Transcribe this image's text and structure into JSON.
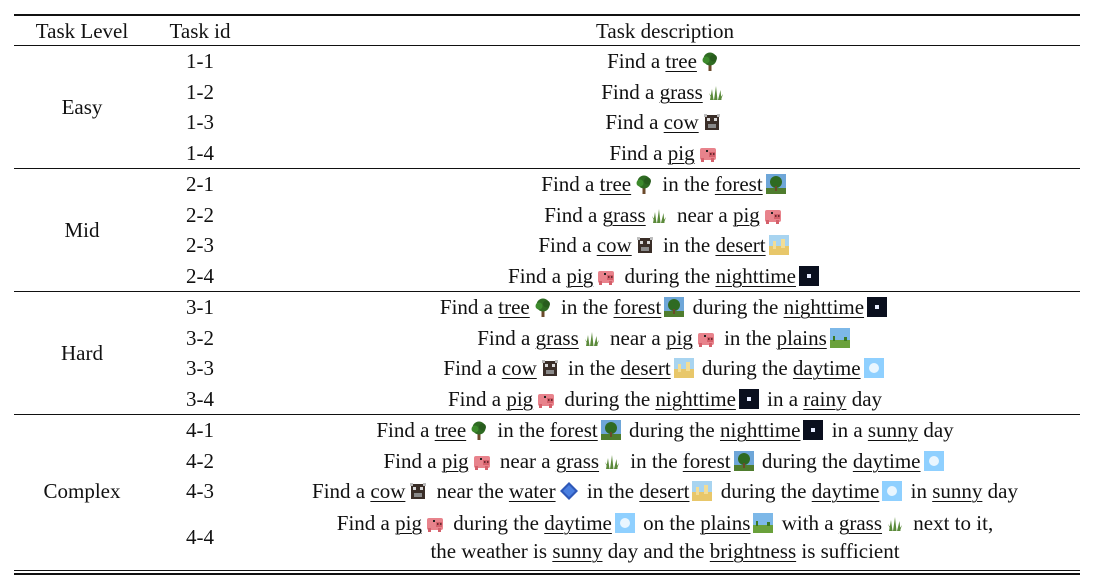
{
  "headers": {
    "level": "Task Level",
    "id": "Task id",
    "desc": "Task description"
  },
  "groups": [
    {
      "level": "Easy",
      "rows": [
        {
          "id": "1-1",
          "desc": [
            {
              "t": "Find a "
            },
            {
              "t": "tree",
              "u": true
            },
            {
              "icon": "tree-icon"
            }
          ]
        },
        {
          "id": "1-2",
          "desc": [
            {
              "t": "Find a "
            },
            {
              "t": "grass",
              "u": true
            },
            {
              "icon": "grass-icon"
            }
          ]
        },
        {
          "id": "1-3",
          "desc": [
            {
              "t": "Find a "
            },
            {
              "t": "cow",
              "u": true
            },
            {
              "icon": "cow-icon"
            }
          ]
        },
        {
          "id": "1-4",
          "desc": [
            {
              "t": "Find a "
            },
            {
              "t": "pig",
              "u": true
            },
            {
              "icon": "pig-icon"
            }
          ]
        }
      ]
    },
    {
      "level": "Mid",
      "rows": [
        {
          "id": "2-1",
          "desc": [
            {
              "t": "Find a "
            },
            {
              "t": "tree",
              "u": true
            },
            {
              "icon": "tree-icon"
            },
            {
              "t": " in the "
            },
            {
              "t": "forest",
              "u": true
            },
            {
              "icon": "forest-icon"
            }
          ]
        },
        {
          "id": "2-2",
          "desc": [
            {
              "t": "Find a "
            },
            {
              "t": "grass",
              "u": true
            },
            {
              "icon": "grass-icon"
            },
            {
              "t": " near a "
            },
            {
              "t": "pig",
              "u": true
            },
            {
              "icon": "pig-icon"
            }
          ]
        },
        {
          "id": "2-3",
          "desc": [
            {
              "t": "Find a "
            },
            {
              "t": "cow",
              "u": true
            },
            {
              "icon": "cow-icon"
            },
            {
              "t": " in the "
            },
            {
              "t": "desert",
              "u": true
            },
            {
              "icon": "desert-icon"
            }
          ]
        },
        {
          "id": "2-4",
          "desc": [
            {
              "t": "Find a "
            },
            {
              "t": "pig",
              "u": true
            },
            {
              "icon": "pig-icon"
            },
            {
              "t": " during the "
            },
            {
              "t": "nighttime",
              "u": true
            },
            {
              "icon": "night-icon"
            }
          ]
        }
      ]
    },
    {
      "level": "Hard",
      "rows": [
        {
          "id": "3-1",
          "desc": [
            {
              "t": "Find a "
            },
            {
              "t": "tree",
              "u": true
            },
            {
              "icon": "tree-icon"
            },
            {
              "t": " in the "
            },
            {
              "t": "forest",
              "u": true
            },
            {
              "icon": "forest-icon"
            },
            {
              "t": " during the "
            },
            {
              "t": "nighttime",
              "u": true
            },
            {
              "icon": "night-icon"
            }
          ]
        },
        {
          "id": "3-2",
          "desc": [
            {
              "t": "Find a "
            },
            {
              "t": "grass",
              "u": true
            },
            {
              "icon": "grass-icon"
            },
            {
              "t": " near a "
            },
            {
              "t": "pig",
              "u": true
            },
            {
              "icon": "pig-icon"
            },
            {
              "t": " in the "
            },
            {
              "t": "plains",
              "u": true
            },
            {
              "icon": "plains-icon"
            }
          ]
        },
        {
          "id": "3-3",
          "desc": [
            {
              "t": "Find a "
            },
            {
              "t": "cow",
              "u": true
            },
            {
              "icon": "cow-icon"
            },
            {
              "t": " in the "
            },
            {
              "t": "desert",
              "u": true
            },
            {
              "icon": "desert-icon"
            },
            {
              "t": " during the "
            },
            {
              "t": "daytime",
              "u": true
            },
            {
              "icon": "day-icon"
            }
          ]
        },
        {
          "id": "3-4",
          "desc": [
            {
              "t": "Find a "
            },
            {
              "t": "pig",
              "u": true
            },
            {
              "icon": "pig-icon"
            },
            {
              "t": " during the "
            },
            {
              "t": "nighttime",
              "u": true
            },
            {
              "icon": "night-icon"
            },
            {
              "t": " in a "
            },
            {
              "t": "rainy",
              "u": true
            },
            {
              "t": " day"
            }
          ]
        }
      ]
    },
    {
      "level": "Complex",
      "rows": [
        {
          "id": "4-1",
          "desc": [
            {
              "t": "Find a "
            },
            {
              "t": "tree",
              "u": true
            },
            {
              "icon": "tree-icon"
            },
            {
              "t": " in the "
            },
            {
              "t": "forest",
              "u": true
            },
            {
              "icon": "forest-icon"
            },
            {
              "t": " during the "
            },
            {
              "t": "nighttime",
              "u": true
            },
            {
              "icon": "night-icon"
            },
            {
              "t": " in a "
            },
            {
              "t": "sunny",
              "u": true
            },
            {
              "t": " day"
            }
          ]
        },
        {
          "id": "4-2",
          "desc": [
            {
              "t": "Find a "
            },
            {
              "t": "pig",
              "u": true
            },
            {
              "icon": "pig-icon"
            },
            {
              "t": " near a "
            },
            {
              "t": "grass",
              "u": true
            },
            {
              "icon": "grass-icon"
            },
            {
              "t": " in the "
            },
            {
              "t": "forest",
              "u": true
            },
            {
              "icon": "forest-icon"
            },
            {
              "t": " during the "
            },
            {
              "t": "daytime",
              "u": true
            },
            {
              "icon": "day-icon"
            }
          ]
        },
        {
          "id": "4-3",
          "desc": [
            {
              "t": "Find a "
            },
            {
              "t": "cow",
              "u": true
            },
            {
              "icon": "cow-icon"
            },
            {
              "t": " near the "
            },
            {
              "t": "water",
              "u": true
            },
            {
              "icon": "water-icon"
            },
            {
              "t": " in the "
            },
            {
              "t": "desert",
              "u": true
            },
            {
              "icon": "desert-icon"
            },
            {
              "t": " during the "
            },
            {
              "t": "daytime",
              "u": true
            },
            {
              "icon": "day-icon"
            },
            {
              "t": " in "
            },
            {
              "t": "sunny",
              "u": true
            },
            {
              "t": " day"
            }
          ]
        },
        {
          "id": "4-4",
          "tall": true,
          "desc": [
            {
              "t": "Find a "
            },
            {
              "t": "pig",
              "u": true
            },
            {
              "icon": "pig-icon"
            },
            {
              "t": " during the "
            },
            {
              "t": "daytime",
              "u": true
            },
            {
              "icon": "day-icon"
            },
            {
              "t": " on the "
            },
            {
              "t": "plains",
              "u": true
            },
            {
              "icon": "plains-icon"
            },
            {
              "t": " with a "
            },
            {
              "t": "grass",
              "u": true
            },
            {
              "icon": "grass-icon"
            },
            {
              "t": " next to it,"
            },
            {
              "br": true
            },
            {
              "t": "the weather is "
            },
            {
              "t": "sunny",
              "u": true
            },
            {
              "t": " day and the "
            },
            {
              "t": "brightness",
              "u": true
            },
            {
              "t": " is sufficient"
            }
          ]
        }
      ]
    }
  ]
}
